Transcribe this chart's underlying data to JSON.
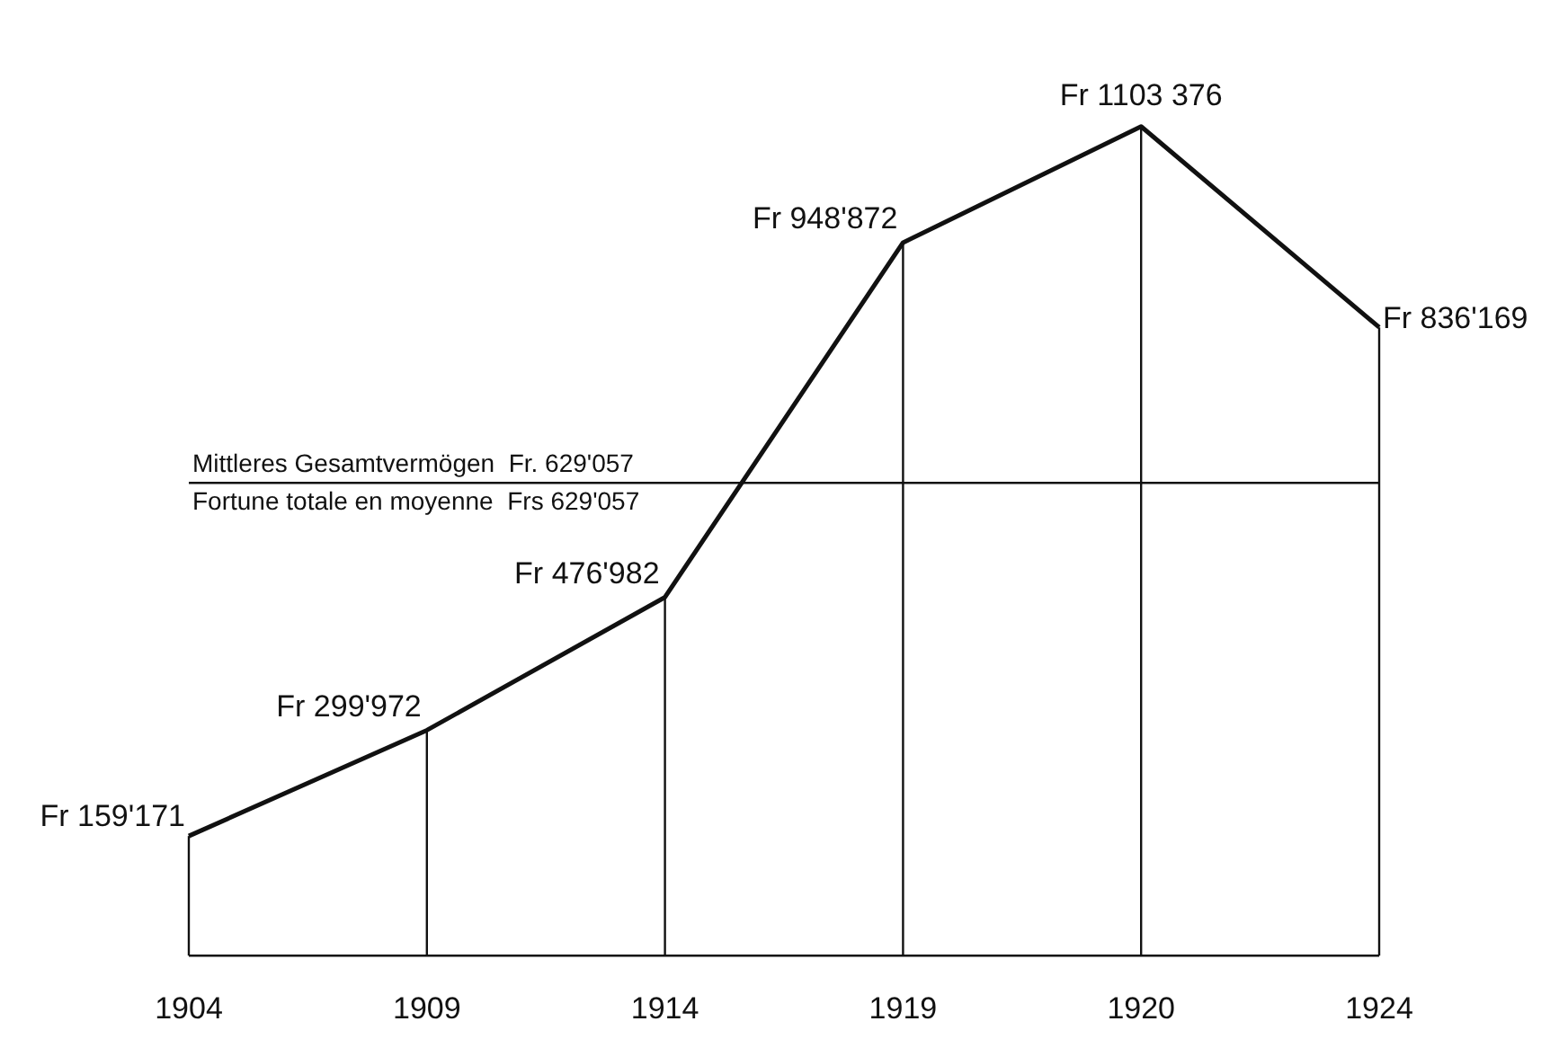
{
  "chart_data": {
    "type": "line",
    "categories": [
      "1904",
      "1909",
      "1914",
      "1919",
      "1920",
      "1924"
    ],
    "series": [
      {
        "color": "#111111",
        "values": [
          159171,
          299972,
          476982,
          948872,
          1103376,
          836169
        ],
        "value_labels": [
          "Fr 159'171",
          "Fr 299'972",
          "Fr 476'982",
          "Fr 948'872",
          "Fr 1103 376",
          "Fr 836'169"
        ]
      }
    ],
    "tick_labels": "x",
    "grid": "x",
    "marker": "none",
    "line_style": "solid",
    "legend": false,
    "ref_lines": [
      {
        "axis": "y",
        "value": 629057,
        "label": "Mittleres Gesamtvermögen  Fr. 629'057",
        "color": "#111111"
      }
    ],
    "annotations": [
      {
        "text": "Fortune totale en moyenne  Frs 629'057",
        "y": 629057
      }
    ]
  }
}
